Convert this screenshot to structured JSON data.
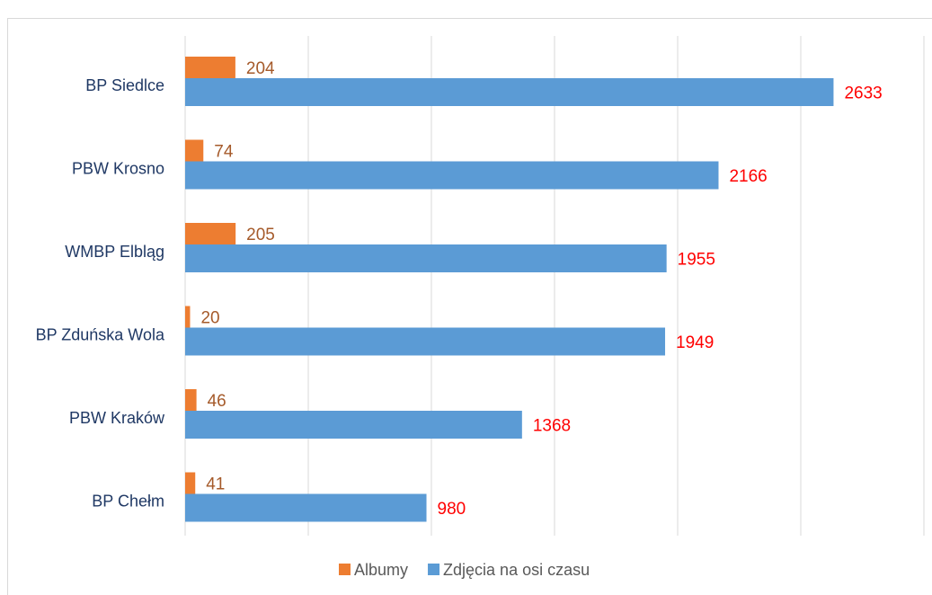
{
  "chart_data": {
    "type": "bar",
    "orientation": "horizontal",
    "categories": [
      "BP Siedlce",
      "PBW Krosno",
      "WMBP Elbląg",
      "BP Zduńska Wola",
      "PBW Kraków",
      "BP Chełm"
    ],
    "series": [
      {
        "name": "Albumy",
        "values": [
          204,
          74,
          205,
          20,
          46,
          41
        ],
        "color": "#ED7D31",
        "label_color": "#A55A2A"
      },
      {
        "name": "Zdjęcia na osi czasu",
        "values": [
          2633,
          2166,
          1955,
          1949,
          1368,
          980
        ],
        "color": "#5B9BD5",
        "label_color": "#FF0000"
      }
    ],
    "xlim": [
      0,
      3000
    ],
    "grid": true,
    "legend_position": "bottom",
    "category_label_color": "#1F3864"
  }
}
